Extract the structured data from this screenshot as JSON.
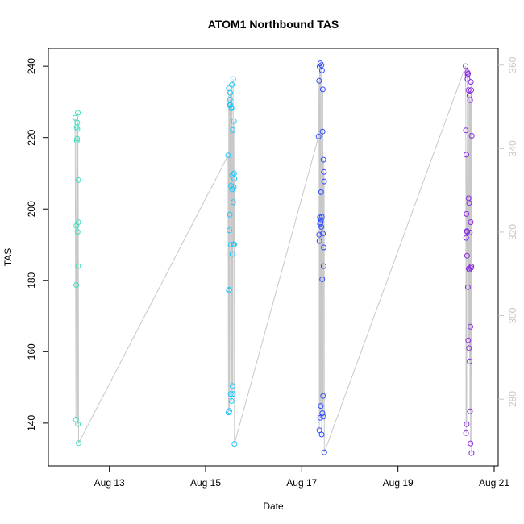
{
  "chart_data": {
    "type": "scatter",
    "title": "ATOM1 Northbound TAS",
    "xlabel": "Date",
    "ylabel": "TAS",
    "x_range": [
      "2023-08-12 00:00",
      "2023-08-21 00:00"
    ],
    "x_ticks": [
      "Aug 13",
      "Aug 15",
      "Aug 17",
      "Aug 19",
      "Aug 21"
    ],
    "y_ticks": [
      140,
      160,
      180,
      200,
      220,
      240
    ],
    "ylim": [
      128,
      245
    ],
    "y2_ticks": [
      280,
      300,
      320,
      340,
      360
    ],
    "y2lim": [
      264,
      364
    ],
    "y2_color": "#c8c8c8",
    "grid": false,
    "legend": "none",
    "point_colors": [
      "#40e0c0",
      "#1ec8ff",
      "#2f4bff",
      "#8a2be2"
    ],
    "line_color": "#c8c8c8",
    "series": [
      {
        "values": [
          [
            "2023-08-12 06:54",
            225.5
          ],
          [
            "2023-08-12 07:19",
            141.0
          ],
          [
            "2023-08-12 07:26",
            178.7
          ],
          [
            "2023-08-12 07:31",
            195.3
          ],
          [
            "2023-08-12 07:40",
            222.9
          ],
          [
            "2023-08-12 07:47",
            219.1
          ],
          [
            "2023-08-12 07:56",
            219.7
          ],
          [
            "2023-08-12 07:58",
            224.2
          ],
          [
            "2023-08-12 08:00",
            222.4
          ],
          [
            "2023-08-12 08:09",
            193.6
          ],
          [
            "2023-08-12 08:16",
            139.7
          ],
          [
            "2023-08-12 08:18",
            226.9
          ],
          [
            "2023-08-12 08:25",
            184.0
          ],
          [
            "2023-08-12 08:28",
            208.1
          ],
          [
            "2023-08-12 08:30",
            196.3
          ],
          [
            "2023-08-12 08:38",
            134.4
          ]
        ]
      },
      {
        "values": [
          [
            "2023-08-15 11:14",
            215.0
          ],
          [
            "2023-08-15 11:26",
            143.0
          ],
          [
            "2023-08-15 11:34",
            233.8
          ],
          [
            "2023-08-15 11:38",
            177.1
          ],
          [
            "2023-08-15 11:46",
            177.4
          ],
          [
            "2023-08-15 11:50",
            194.0
          ],
          [
            "2023-08-15 11:55",
            143.4
          ],
          [
            "2023-08-15 12:00",
            229.1
          ],
          [
            "2023-08-15 12:05",
            198.4
          ],
          [
            "2023-08-15 12:10",
            230.7
          ],
          [
            "2023-08-15 12:17",
            232.5
          ],
          [
            "2023-08-15 12:24",
            229.1
          ],
          [
            "2023-08-15 12:31",
            148.2
          ],
          [
            "2023-08-15 12:36",
            190.0
          ],
          [
            "2023-08-15 12:41",
            206.5
          ],
          [
            "2023-08-15 12:48",
            228.5
          ],
          [
            "2023-08-15 12:55",
            228.2
          ],
          [
            "2023-08-15 13:00",
            146.2
          ],
          [
            "2023-08-15 13:06",
            234.8
          ],
          [
            "2023-08-15 13:12",
            209.6
          ],
          [
            "2023-08-15 13:17",
            205.5
          ],
          [
            "2023-08-15 13:22",
            187.4
          ],
          [
            "2023-08-15 13:27",
            150.4
          ],
          [
            "2023-08-15 13:33",
            222.1
          ],
          [
            "2023-08-15 13:38",
            148.2
          ],
          [
            "2023-08-15 13:45",
            236.4
          ],
          [
            "2023-08-15 13:48",
            201.9
          ],
          [
            "2023-08-15 13:55",
            190.0
          ],
          [
            "2023-08-15 14:02",
            206.1
          ],
          [
            "2023-08-15 14:07",
            224.6
          ],
          [
            "2023-08-15 14:12",
            210.0
          ],
          [
            "2023-08-15 14:16",
            190.1
          ],
          [
            "2023-08-15 14:20",
            208.5
          ],
          [
            "2023-08-15 14:24",
            134.2
          ]
        ]
      },
      {
        "values": [
          [
            "2023-08-17 08:24",
            220.3
          ],
          [
            "2023-08-17 08:37",
            235.9
          ],
          [
            "2023-08-17 08:41",
            192.8
          ],
          [
            "2023-08-17 08:46",
            138.0
          ],
          [
            "2023-08-17 08:51",
            191.0
          ],
          [
            "2023-08-17 08:56",
            239.9
          ],
          [
            "2023-08-17 09:02",
            197.6
          ],
          [
            "2023-08-17 09:08",
            195.8
          ],
          [
            "2023-08-17 09:13",
            141.5
          ],
          [
            "2023-08-17 09:17",
            240.8
          ],
          [
            "2023-08-17 09:22",
            196.2
          ],
          [
            "2023-08-17 09:28",
            144.8
          ],
          [
            "2023-08-17 09:33",
            196.9
          ],
          [
            "2023-08-17 09:38",
            204.7
          ],
          [
            "2023-08-17 09:45",
            195.0
          ],
          [
            "2023-08-17 09:50",
            240.3
          ],
          [
            "2023-08-17 09:55",
            136.8
          ],
          [
            "2023-08-17 10:00",
            197.8
          ],
          [
            "2023-08-17 10:06",
            238.8
          ],
          [
            "2023-08-17 10:12",
            180.3
          ],
          [
            "2023-08-17 10:17",
            142.8
          ],
          [
            "2023-08-17 10:23",
            221.7
          ],
          [
            "2023-08-17 10:28",
            233.5
          ],
          [
            "2023-08-17 10:34",
            193.1
          ],
          [
            "2023-08-17 10:38",
            147.6
          ],
          [
            "2023-08-17 10:43",
            141.8
          ],
          [
            "2023-08-17 10:48",
            213.8
          ],
          [
            "2023-08-17 10:53",
            184.0
          ],
          [
            "2023-08-17 10:58",
            189.2
          ],
          [
            "2023-08-17 11:04",
            210.4
          ],
          [
            "2023-08-17 11:09",
            207.7
          ],
          [
            "2023-08-17 11:14",
            131.8
          ]
        ]
      },
      {
        "values": [
          [
            "2023-08-20 09:46",
            240.0
          ],
          [
            "2023-08-20 09:52",
            222.0
          ],
          [
            "2023-08-20 09:58",
            137.2
          ],
          [
            "2023-08-20 10:03",
            191.9
          ],
          [
            "2023-08-20 10:08",
            215.2
          ],
          [
            "2023-08-20 10:12",
            198.6
          ],
          [
            "2023-08-20 10:18",
            139.7
          ],
          [
            "2023-08-20 10:23",
            193.8
          ],
          [
            "2023-08-20 10:28",
            186.9
          ],
          [
            "2023-08-20 10:33",
            193.6
          ],
          [
            "2023-08-20 10:38",
            238.3
          ],
          [
            "2023-08-20 10:42",
            236.4
          ],
          [
            "2023-08-20 10:47",
            237.6
          ],
          [
            "2023-08-20 10:54",
            178.1
          ],
          [
            "2023-08-20 10:59",
            237.9
          ],
          [
            "2023-08-20 11:04",
            163.2
          ],
          [
            "2023-08-20 11:10",
            233.3
          ],
          [
            "2023-08-20 11:15",
            203.0
          ],
          [
            "2023-08-20 11:20",
            183.3
          ],
          [
            "2023-08-20 11:26",
            161.0
          ],
          [
            "2023-08-20 11:31",
            201.7
          ],
          [
            "2023-08-20 11:36",
            183.0
          ],
          [
            "2023-08-20 11:42",
            231.8
          ],
          [
            "2023-08-20 11:46",
            157.3
          ],
          [
            "2023-08-20 11:52",
            193.4
          ],
          [
            "2023-08-20 11:56",
            143.3
          ],
          [
            "2023-08-20 12:02",
            230.5
          ],
          [
            "2023-08-20 12:07",
            167.0
          ],
          [
            "2023-08-20 12:12",
            134.3
          ],
          [
            "2023-08-20 12:17",
            196.3
          ],
          [
            "2023-08-20 12:22",
            235.6
          ],
          [
            "2023-08-20 12:27",
            183.5
          ],
          [
            "2023-08-20 12:32",
            233.3
          ],
          [
            "2023-08-20 12:38",
            183.9
          ],
          [
            "2023-08-20 12:42",
            131.6
          ],
          [
            "2023-08-20 12:48",
            220.5
          ]
        ]
      }
    ]
  }
}
